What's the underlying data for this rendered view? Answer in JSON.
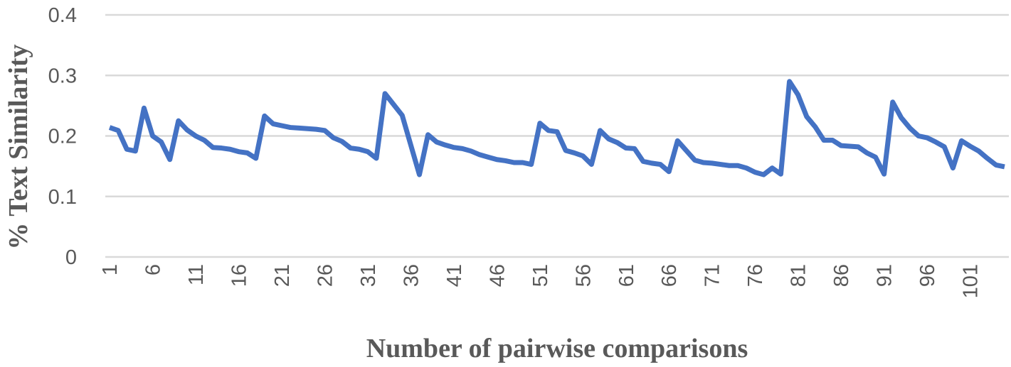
{
  "chart_data": {
    "type": "line",
    "y_label": "% Text Similarity",
    "x_label": "Number of pairwise comparisons",
    "x": [
      1,
      2,
      3,
      4,
      5,
      6,
      7,
      8,
      9,
      10,
      11,
      12,
      13,
      14,
      15,
      16,
      17,
      18,
      19,
      20,
      21,
      22,
      23,
      24,
      25,
      26,
      27,
      28,
      29,
      30,
      31,
      32,
      33,
      34,
      35,
      36,
      37,
      38,
      39,
      40,
      41,
      42,
      43,
      44,
      45,
      46,
      47,
      48,
      49,
      50,
      51,
      52,
      53,
      54,
      55,
      56,
      57,
      58,
      59,
      60,
      61,
      62,
      63,
      64,
      65,
      66,
      67,
      68,
      69,
      70,
      71,
      72,
      73,
      74,
      75,
      76,
      77,
      78,
      79,
      80,
      81,
      82,
      83,
      84,
      85,
      86,
      87,
      88,
      89,
      90,
      91,
      92,
      93,
      94,
      95,
      96,
      97,
      98,
      99,
      100,
      101,
      102,
      103,
      104,
      105
    ],
    "series": [
      {
        "color": "#4472c4",
        "values": [
          0.214,
          0.209,
          0.178,
          0.175,
          0.246,
          0.2,
          0.19,
          0.161,
          0.225,
          0.21,
          0.2,
          0.193,
          0.181,
          0.18,
          0.178,
          0.174,
          0.172,
          0.163,
          0.233,
          0.22,
          0.217,
          0.214,
          0.213,
          0.212,
          0.211,
          0.209,
          0.197,
          0.191,
          0.18,
          0.178,
          0.174,
          0.163,
          0.27,
          0.252,
          0.234,
          0.185,
          0.136,
          0.202,
          0.19,
          0.185,
          0.181,
          0.179,
          0.175,
          0.169,
          0.165,
          0.161,
          0.159,
          0.156,
          0.156,
          0.153,
          0.221,
          0.209,
          0.207,
          0.176,
          0.172,
          0.167,
          0.153,
          0.209,
          0.195,
          0.189,
          0.18,
          0.179,
          0.158,
          0.155,
          0.153,
          0.141,
          0.192,
          0.176,
          0.16,
          0.156,
          0.155,
          0.153,
          0.151,
          0.151,
          0.147,
          0.14,
          0.136,
          0.147,
          0.137,
          0.29,
          0.268,
          0.232,
          0.215,
          0.193,
          0.193,
          0.184,
          0.183,
          0.182,
          0.172,
          0.165,
          0.137,
          0.256,
          0.23,
          0.213,
          0.2,
          0.197,
          0.19,
          0.182,
          0.147,
          0.192,
          0.183,
          0.175,
          0.163,
          0.152,
          0.149
        ]
      }
    ],
    "xlim": [
      0.5,
      105.5
    ],
    "xticks": [
      1,
      6,
      11,
      16,
      21,
      26,
      31,
      36,
      41,
      46,
      51,
      56,
      61,
      66,
      71,
      76,
      81,
      86,
      91,
      96,
      101
    ],
    "ylim": [
      0,
      0.4
    ],
    "yticks": [
      0,
      0.1,
      0.2,
      0.3,
      0.4
    ],
    "grid": true
  }
}
